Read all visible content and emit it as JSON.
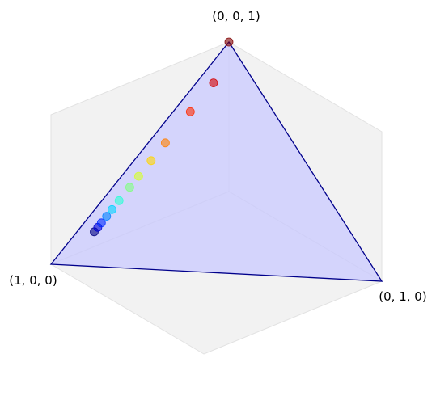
{
  "chart_data": {
    "type": "scatter",
    "projection": "3d-simplex",
    "vertices": [
      {
        "label": "(1, 0, 0)",
        "coords": [
          1,
          0,
          0
        ]
      },
      {
        "label": "(0, 1, 0)",
        "coords": [
          0,
          1,
          0
        ]
      },
      {
        "label": "(0, 0, 1)",
        "coords": [
          0,
          0,
          1
        ]
      }
    ],
    "points": [
      [
        0.8,
        0.05,
        0.15
      ],
      [
        0.78,
        0.05,
        0.17
      ],
      [
        0.76,
        0.05,
        0.19
      ],
      [
        0.73,
        0.05,
        0.22
      ],
      [
        0.7,
        0.05,
        0.25
      ],
      [
        0.66,
        0.05,
        0.29
      ],
      [
        0.6,
        0.05,
        0.35
      ],
      [
        0.55,
        0.05,
        0.4
      ],
      [
        0.48,
        0.05,
        0.47
      ],
      [
        0.4,
        0.05,
        0.55
      ],
      [
        0.26,
        0.05,
        0.69
      ],
      [
        0.13,
        0.05,
        0.82
      ],
      [
        0.0,
        0.0,
        1.0
      ]
    ],
    "colormap": "jet",
    "grid": false,
    "colors": {
      "simplex_fill": "#c8c8ff",
      "simplex_edge": "#00008b",
      "pane_fill": "#f2f2f2",
      "pane_edge": "#e2e2e2"
    }
  }
}
